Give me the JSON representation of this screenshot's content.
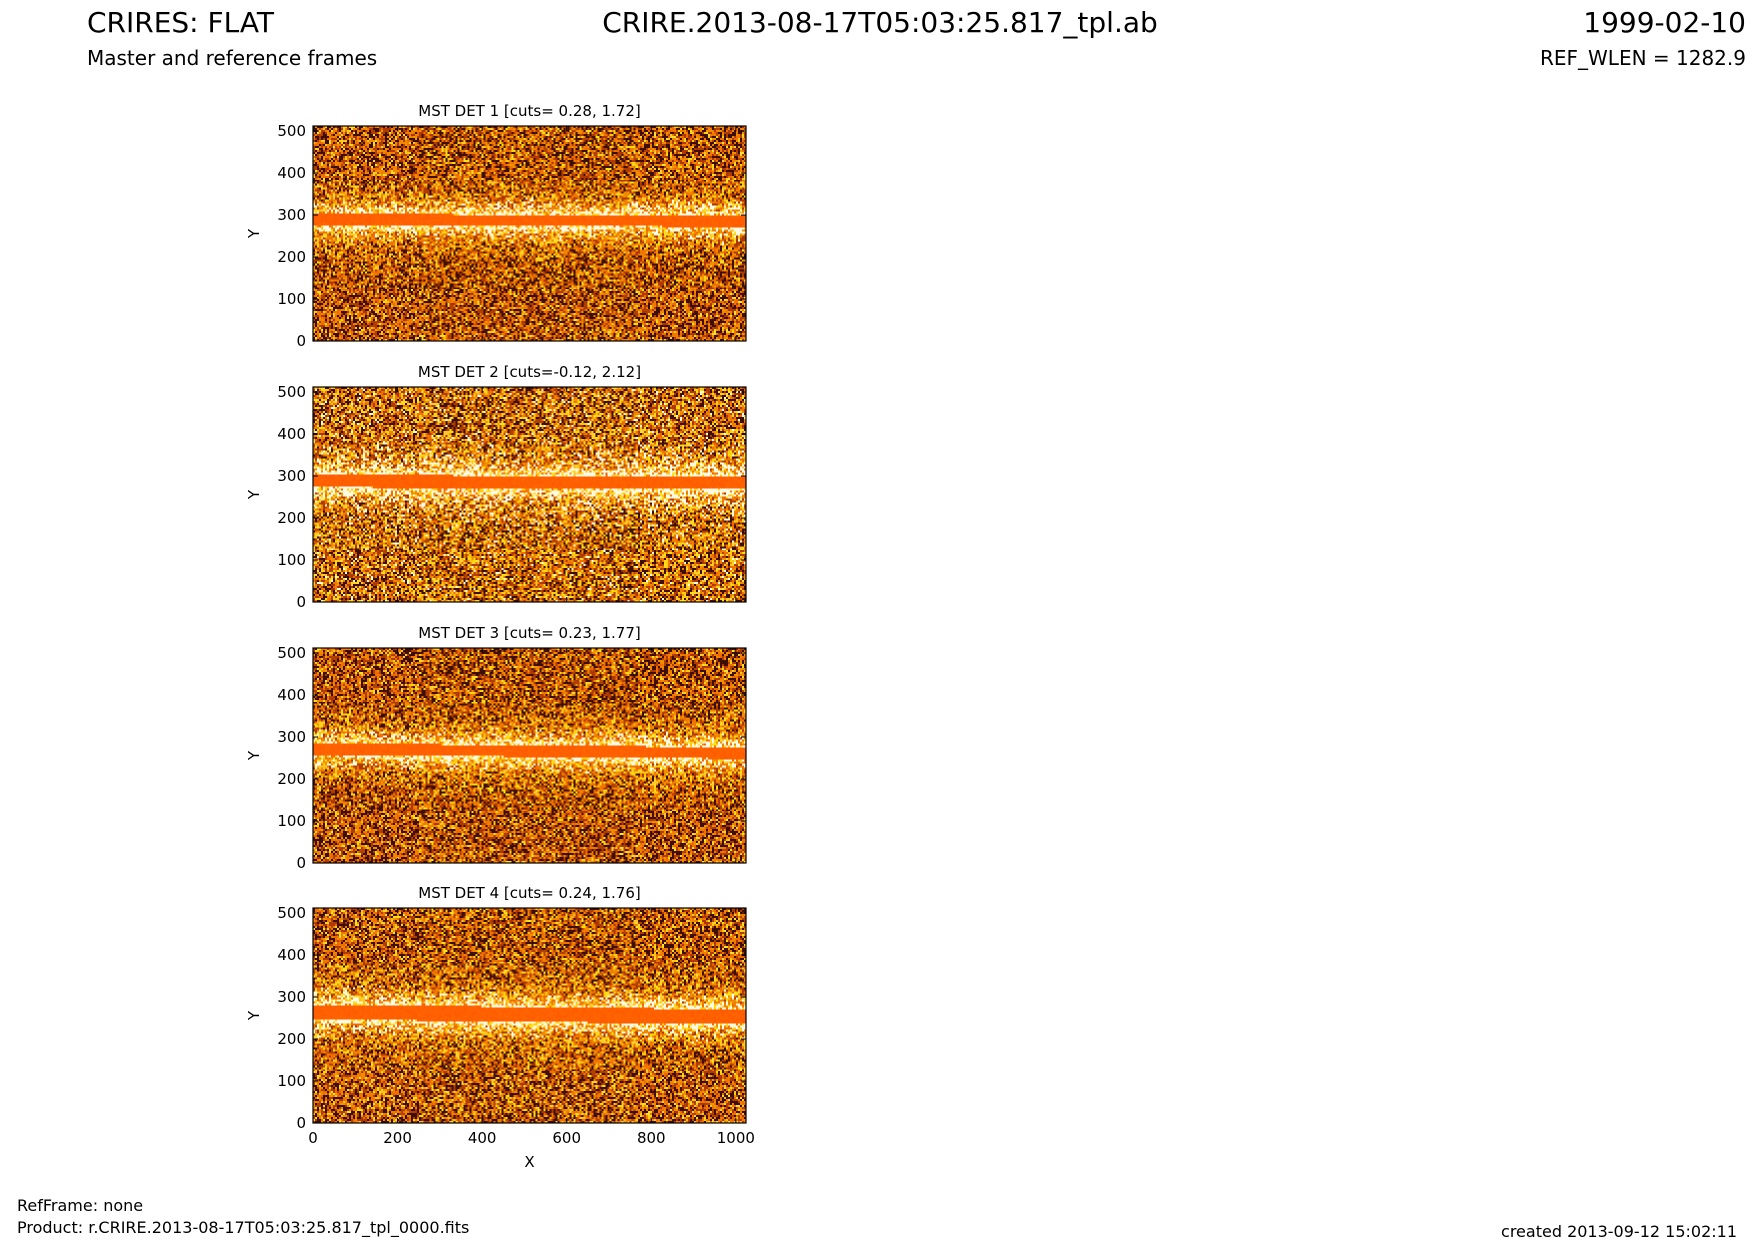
{
  "header": {
    "title_left": "CRIRES: FLAT",
    "subtitle_left": "Master and reference frames",
    "title_center": "CRIRE.2013-08-17T05:03:25.817_tpl.ab",
    "title_right": "1999-02-10",
    "subtitle_right": "REF_WLEN = 1282.9"
  },
  "footer": {
    "refframe": "RefFrame: none",
    "product": "Product: r.CRIRE.2013-08-17T05:03:25.817_tpl_0000.fits",
    "created": "created 2013-09-12 15:02:11"
  },
  "colors": {
    "band": "#ff5a00",
    "bright": "#fffbe6",
    "dark": "#2a0a00"
  },
  "chart_data": [
    {
      "type": "heatmap",
      "title": "MST DET 1 [cuts= 0.28, 1.72]",
      "xlabel": "",
      "ylabel": "Y",
      "xlim": [
        0,
        1024
      ],
      "ylim": [
        0,
        512
      ],
      "xticks": [],
      "yticks": [
        0,
        100,
        200,
        300,
        400,
        500
      ],
      "cuts": [
        0.28,
        1.72
      ],
      "colormap": "hot",
      "band_y": [
        275,
        302
      ],
      "darkness": 0.6
    },
    {
      "type": "heatmap",
      "title": "MST DET 2 [cuts=-0.12, 2.12]",
      "xlabel": "",
      "ylabel": "Y",
      "xlim": [
        0,
        1024
      ],
      "ylim": [
        0,
        512
      ],
      "xticks": [],
      "yticks": [
        0,
        100,
        200,
        300,
        400,
        500
      ],
      "cuts": [
        -0.12,
        2.12
      ],
      "colormap": "hot",
      "band_y": [
        273,
        302
      ],
      "darkness": 0.3
    },
    {
      "type": "heatmap",
      "title": "MST DET 3 [cuts= 0.23, 1.77]",
      "xlabel": "",
      "ylabel": "Y",
      "xlim": [
        0,
        1024
      ],
      "ylim": [
        0,
        512
      ],
      "xticks": [],
      "yticks": [
        0,
        100,
        200,
        300,
        400,
        500
      ],
      "cuts": [
        0.23,
        1.77
      ],
      "colormap": "hot",
      "band_y": [
        258,
        285
      ],
      "darkness": 0.6
    },
    {
      "type": "heatmap",
      "title": "MST DET 4 [cuts= 0.24, 1.76]",
      "xlabel": "X",
      "ylabel": "Y",
      "xlim": [
        0,
        1024
      ],
      "ylim": [
        0,
        512
      ],
      "xticks": [
        0,
        200,
        400,
        600,
        800,
        1000
      ],
      "yticks": [
        0,
        100,
        200,
        300,
        400,
        500
      ],
      "cuts": [
        0.24,
        1.76
      ],
      "colormap": "hot",
      "band_y": [
        247,
        282
      ],
      "darkness": 0.55
    }
  ]
}
